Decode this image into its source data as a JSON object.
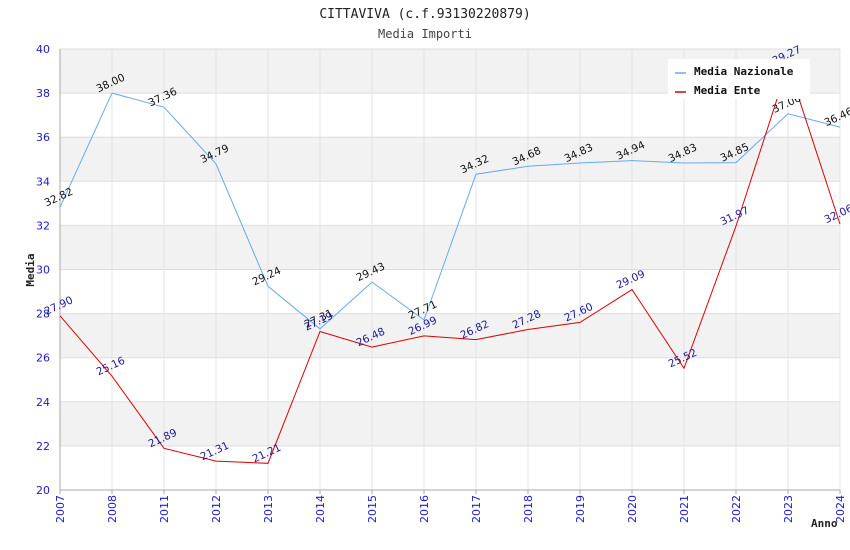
{
  "chart_data": {
    "type": "line",
    "title": "CITTAVIVA (c.f.93130220879)",
    "subtitle": "Media Importi",
    "xlabel": "Anno",
    "ylabel": "Media",
    "ylim": [
      20,
      40
    ],
    "yticks": [
      "20",
      "22",
      "24",
      "26",
      "28",
      "30",
      "32",
      "34",
      "36",
      "38",
      "40"
    ],
    "categories": [
      "2007",
      "2008",
      "2011",
      "2012",
      "2013",
      "2014",
      "2015",
      "2016",
      "2017",
      "2018",
      "2019",
      "2020",
      "2021",
      "2022",
      "2023",
      "2024"
    ],
    "grid": true,
    "legend_position": "top-right",
    "series": [
      {
        "name": "Media Nazionale",
        "color": "#66aaee",
        "label_color": "#111111",
        "values": [
          32.82,
          38.0,
          37.36,
          34.79,
          29.24,
          27.31,
          29.43,
          27.71,
          34.32,
          34.68,
          34.83,
          34.94,
          34.83,
          34.85,
          37.06,
          36.46
        ],
        "labels": [
          "32.82",
          "38.00",
          "37.36",
          "34.79",
          "29.24",
          "27.31",
          "29.43",
          "27.71",
          "34.32",
          "34.68",
          "34.83",
          "34.94",
          "34.83",
          "34.85",
          "37.06",
          "36.46"
        ]
      },
      {
        "name": "Media Ente",
        "color": "#dd0000",
        "label_color": "#1a1a99",
        "values": [
          27.9,
          25.16,
          21.89,
          21.31,
          21.21,
          27.19,
          26.48,
          26.99,
          26.82,
          27.28,
          27.6,
          29.09,
          25.52,
          31.97,
          39.27,
          32.06
        ],
        "labels": [
          "27.90",
          "25.16",
          "21.89",
          "21.31",
          "21.21",
          "27.19",
          "26.48",
          "26.99",
          "26.82",
          "27.28",
          "27.60",
          "29.09",
          "25.52",
          "31.97",
          "39.27",
          "32.06"
        ]
      }
    ]
  }
}
